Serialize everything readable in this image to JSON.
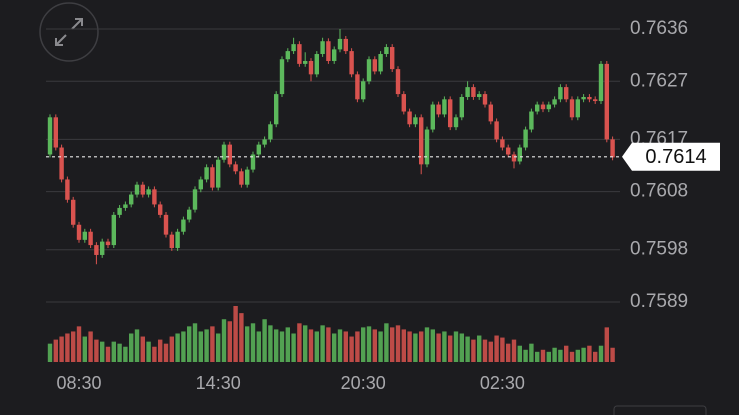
{
  "chart_data": {
    "type": "candlestick",
    "up_color": "#5cb85c",
    "down_color": "#d9534f",
    "ylim": [
      0.7589,
      0.7641
    ],
    "yticks": [
      0.7636,
      0.7627,
      0.7617,
      0.7608,
      0.7598,
      0.7589
    ],
    "grid": true,
    "last_price": 0.7614,
    "categories": [
      null,
      null,
      null,
      null,
      null,
      "08:30",
      null,
      null,
      null,
      null,
      null,
      null,
      null,
      null,
      null,
      null,
      null,
      null,
      null,
      null,
      null,
      null,
      null,
      null,
      null,
      null,
      null,
      null,
      null,
      "14:30",
      null,
      null,
      null,
      null,
      null,
      null,
      null,
      null,
      null,
      null,
      null,
      null,
      null,
      null,
      null,
      null,
      null,
      null,
      null,
      null,
      null,
      null,
      null,
      null,
      "20:30",
      null,
      null,
      null,
      null,
      null,
      null,
      null,
      null,
      null,
      null,
      null,
      null,
      null,
      null,
      null,
      null,
      null,
      null,
      null,
      null,
      null,
      null,
      null,
      "02:30",
      null,
      null,
      null,
      null,
      null,
      null,
      null,
      null,
      null,
      null,
      null,
      null,
      null,
      null,
      null,
      null,
      null,
      null,
      null
    ],
    "open": [
      0.76144,
      0.76208,
      0.76156,
      0.76101,
      0.76066,
      0.76023,
      0.75997,
      0.76011,
      0.75988,
      0.75971,
      0.75994,
      0.75988,
      0.7604,
      0.76052,
      0.76058,
      0.76075,
      0.76092,
      0.76075,
      0.76084,
      0.76058,
      0.7604,
      0.76006,
      0.75983,
      0.76011,
      0.76032,
      0.76049,
      0.76084,
      0.76101,
      0.76122,
      0.76087,
      0.76135,
      0.76161,
      0.76127,
      0.76115,
      0.76092,
      0.76118,
      0.76144,
      0.76161,
      0.7617,
      0.76196,
      0.76248,
      0.76308,
      0.76322,
      0.76334,
      0.763,
      0.76305,
      0.76282,
      0.76317,
      0.76339,
      0.76305,
      0.76325,
      0.76343,
      0.76322,
      0.76282,
      0.76239,
      0.7627,
      0.76308,
      0.76287,
      0.76317,
      0.76329,
      0.76291,
      0.76248,
      0.76218,
      0.76196,
      0.76208,
      0.76127,
      0.76187,
      0.7623,
      0.76213,
      0.76239,
      0.76191,
      0.76208,
      0.76243,
      0.7626,
      0.76243,
      0.76248,
      0.7623,
      0.76201,
      0.7617,
      0.76156,
      0.76144,
      0.76132,
      0.76156,
      0.76187,
      0.76218,
      0.7623,
      0.76222,
      0.7623,
      0.76239,
      0.7626,
      0.76239,
      0.76208,
      0.76239,
      0.76243,
      0.76239,
      0.76236,
      0.763,
      0.7617
    ],
    "high": [
      0.76213,
      0.76213,
      0.76161,
      0.76106,
      0.76071,
      0.76028,
      0.76016,
      0.76016,
      0.75993,
      0.75999,
      0.75999,
      0.76045,
      0.76057,
      0.76063,
      0.7608,
      0.76097,
      0.76097,
      0.76089,
      0.76089,
      0.76063,
      0.76045,
      0.76011,
      0.76016,
      0.76037,
      0.76054,
      0.76089,
      0.76106,
      0.76127,
      0.76127,
      0.7614,
      0.76166,
      0.76166,
      0.76132,
      0.7612,
      0.76123,
      0.76149,
      0.76166,
      0.76175,
      0.76201,
      0.76253,
      0.76313,
      0.76327,
      0.76345,
      0.76339,
      0.7632,
      0.7631,
      0.76322,
      0.76345,
      0.76344,
      0.7633,
      0.7636,
      0.76348,
      0.76327,
      0.76287,
      0.76275,
      0.76313,
      0.76313,
      0.76322,
      0.76334,
      0.76334,
      0.76296,
      0.76253,
      0.76223,
      0.76213,
      0.76213,
      0.76192,
      0.76235,
      0.76235,
      0.76244,
      0.76244,
      0.76213,
      0.76248,
      0.7627,
      0.76265,
      0.76253,
      0.76253,
      0.76235,
      0.76206,
      0.76175,
      0.76161,
      0.76149,
      0.76161,
      0.76192,
      0.76223,
      0.76235,
      0.76235,
      0.76235,
      0.76244,
      0.76265,
      0.76265,
      0.76244,
      0.76244,
      0.76248,
      0.76248,
      0.76244,
      0.76305,
      0.76305,
      0.76175
    ],
    "low": [
      0.76139,
      0.76151,
      0.76096,
      0.76061,
      0.76018,
      0.75992,
      0.75992,
      0.75983,
      0.75955,
      0.75966,
      0.75983,
      0.75983,
      0.76035,
      0.76047,
      0.76053,
      0.7607,
      0.7607,
      0.7607,
      0.76053,
      0.76035,
      0.76001,
      0.75978,
      0.75978,
      0.76006,
      0.76027,
      0.76044,
      0.76079,
      0.76096,
      0.76082,
      0.76082,
      0.7613,
      0.76122,
      0.7611,
      0.76087,
      0.76087,
      0.76113,
      0.76139,
      0.76156,
      0.76165,
      0.76191,
      0.76243,
      0.76303,
      0.76317,
      0.76295,
      0.76295,
      0.7627,
      0.76277,
      0.76312,
      0.763,
      0.763,
      0.7632,
      0.76317,
      0.76277,
      0.76234,
      0.76234,
      0.76265,
      0.76282,
      0.76282,
      0.76312,
      0.76286,
      0.76243,
      0.76213,
      0.76191,
      0.76191,
      0.7611,
      0.76122,
      0.76182,
      0.76208,
      0.76208,
      0.76186,
      0.76186,
      0.76203,
      0.76238,
      0.76238,
      0.76238,
      0.76225,
      0.76196,
      0.76165,
      0.76151,
      0.76139,
      0.7612,
      0.76127,
      0.76151,
      0.76182,
      0.76213,
      0.76217,
      0.76217,
      0.76225,
      0.76234,
      0.76234,
      0.76203,
      0.76203,
      0.76234,
      0.76234,
      0.76231,
      0.76231,
      0.76165,
      0.76134
    ],
    "close": [
      0.76208,
      0.76156,
      0.76101,
      0.76066,
      0.76023,
      0.75997,
      0.76011,
      0.75988,
      0.75971,
      0.75994,
      0.75988,
      0.7604,
      0.76052,
      0.76058,
      0.76075,
      0.76092,
      0.76075,
      0.76084,
      0.76058,
      0.7604,
      0.76006,
      0.75983,
      0.76011,
      0.76032,
      0.76049,
      0.76084,
      0.76101,
      0.76122,
      0.76087,
      0.76135,
      0.76161,
      0.76127,
      0.76115,
      0.76092,
      0.76118,
      0.76144,
      0.76161,
      0.7617,
      0.76196,
      0.76248,
      0.76308,
      0.76322,
      0.76334,
      0.763,
      0.76305,
      0.76282,
      0.76317,
      0.76339,
      0.76305,
      0.76325,
      0.76343,
      0.76322,
      0.76282,
      0.76239,
      0.7627,
      0.76308,
      0.76287,
      0.76317,
      0.76329,
      0.76291,
      0.76248,
      0.76218,
      0.76196,
      0.76208,
      0.76127,
      0.76187,
      0.7623,
      0.76213,
      0.76239,
      0.76191,
      0.76208,
      0.76243,
      0.7626,
      0.76243,
      0.76248,
      0.7623,
      0.76201,
      0.7617,
      0.76156,
      0.76144,
      0.76132,
      0.76156,
      0.76187,
      0.76218,
      0.7623,
      0.76222,
      0.7623,
      0.76239,
      0.7626,
      0.76239,
      0.76208,
      0.76239,
      0.76243,
      0.76239,
      0.76236,
      0.763,
      0.7617,
      0.76139
    ],
    "volume": [
      18,
      22,
      25,
      28,
      30,
      35,
      25,
      30,
      22,
      20,
      15,
      20,
      18,
      15,
      28,
      32,
      25,
      20,
      15,
      22,
      18,
      25,
      28,
      30,
      35,
      38,
      30,
      32,
      35,
      28,
      42,
      40,
      55,
      48,
      35,
      38,
      30,
      42,
      36,
      32,
      30,
      34,
      28,
      38,
      36,
      32,
      30,
      36,
      34,
      28,
      32,
      30,
      25,
      30,
      34,
      35,
      32,
      30,
      38,
      34,
      36,
      32,
      30,
      28,
      30,
      34,
      32,
      28,
      30,
      26,
      30,
      28,
      25,
      22,
      26,
      22,
      20,
      26,
      24,
      18,
      22,
      16,
      12,
      18,
      10,
      12,
      10,
      14,
      12,
      16,
      10,
      12,
      14,
      16,
      10,
      16,
      34,
      14
    ]
  }
}
